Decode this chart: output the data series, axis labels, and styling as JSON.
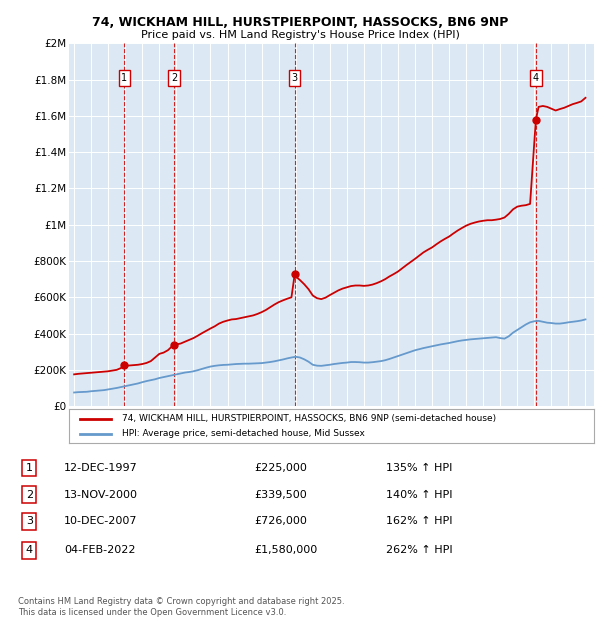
{
  "title_line1": "74, WICKHAM HILL, HURSTPIERPOINT, HASSOCKS, BN6 9NP",
  "title_line2": "Price paid vs. HM Land Registry's House Price Index (HPI)",
  "bg_color": "#dce9f5",
  "red_color": "#cc0000",
  "blue_color": "#6699cc",
  "grid_color": "#ffffff",
  "ylim": [
    0,
    2000000
  ],
  "yticks": [
    0,
    200000,
    400000,
    600000,
    800000,
    1000000,
    1200000,
    1400000,
    1600000,
    1800000,
    2000000
  ],
  "ytick_labels": [
    "£0",
    "£200K",
    "£400K",
    "£600K",
    "£800K",
    "£1M",
    "£1.2M",
    "£1.4M",
    "£1.6M",
    "£1.8M",
    "£2M"
  ],
  "xlim_start": 1994.7,
  "xlim_end": 2025.5,
  "xticks": [
    1995,
    1996,
    1997,
    1998,
    1999,
    2000,
    2001,
    2002,
    2003,
    2004,
    2005,
    2006,
    2007,
    2008,
    2009,
    2010,
    2011,
    2012,
    2013,
    2014,
    2015,
    2016,
    2017,
    2018,
    2019,
    2020,
    2021,
    2022,
    2023,
    2024,
    2025
  ],
  "sale_dates": [
    1997.95,
    2000.87,
    2007.94,
    2022.09
  ],
  "sale_prices": [
    225000,
    339500,
    726000,
    1580000
  ],
  "sale_labels": [
    "1",
    "2",
    "3",
    "4"
  ],
  "legend_red": "74, WICKHAM HILL, HURSTPIERPOINT, HASSOCKS, BN6 9NP (semi-detached house)",
  "legend_blue": "HPI: Average price, semi-detached house, Mid Sussex",
  "table_data": [
    [
      "1",
      "12-DEC-1997",
      "£225,000",
      "135% ↑ HPI"
    ],
    [
      "2",
      "13-NOV-2000",
      "£339,500",
      "140% ↑ HPI"
    ],
    [
      "3",
      "10-DEC-2007",
      "£726,000",
      "162% ↑ HPI"
    ],
    [
      "4",
      "04-FEB-2022",
      "£1,580,000",
      "262% ↑ HPI"
    ]
  ],
  "footer_text": "Contains HM Land Registry data © Crown copyright and database right 2025.\nThis data is licensed under the Open Government Licence v3.0.",
  "hpi_years": [
    1995.0,
    1995.25,
    1995.5,
    1995.75,
    1996.0,
    1996.25,
    1996.5,
    1996.75,
    1997.0,
    1997.25,
    1997.5,
    1997.75,
    1998.0,
    1998.25,
    1998.5,
    1998.75,
    1999.0,
    1999.25,
    1999.5,
    1999.75,
    2000.0,
    2000.25,
    2000.5,
    2000.75,
    2001.0,
    2001.25,
    2001.5,
    2001.75,
    2002.0,
    2002.25,
    2002.5,
    2002.75,
    2003.0,
    2003.25,
    2003.5,
    2003.75,
    2004.0,
    2004.25,
    2004.5,
    2004.75,
    2005.0,
    2005.25,
    2005.5,
    2005.75,
    2006.0,
    2006.25,
    2006.5,
    2006.75,
    2007.0,
    2007.25,
    2007.5,
    2007.75,
    2008.0,
    2008.25,
    2008.5,
    2008.75,
    2009.0,
    2009.25,
    2009.5,
    2009.75,
    2010.0,
    2010.25,
    2010.5,
    2010.75,
    2011.0,
    2011.25,
    2011.5,
    2011.75,
    2012.0,
    2012.25,
    2012.5,
    2012.75,
    2013.0,
    2013.25,
    2013.5,
    2013.75,
    2014.0,
    2014.25,
    2014.5,
    2014.75,
    2015.0,
    2015.25,
    2015.5,
    2015.75,
    2016.0,
    2016.25,
    2016.5,
    2016.75,
    2017.0,
    2017.25,
    2017.5,
    2017.75,
    2018.0,
    2018.25,
    2018.5,
    2018.75,
    2019.0,
    2019.25,
    2019.5,
    2019.75,
    2020.0,
    2020.25,
    2020.5,
    2020.75,
    2021.0,
    2021.25,
    2021.5,
    2021.75,
    2022.0,
    2022.25,
    2022.5,
    2022.75,
    2023.0,
    2023.25,
    2023.5,
    2023.75,
    2024.0,
    2024.25,
    2024.5,
    2024.75,
    2025.0
  ],
  "hpi_values": [
    75000,
    77000,
    78000,
    79000,
    82000,
    84000,
    86000,
    88000,
    92000,
    96000,
    100000,
    105000,
    110000,
    115000,
    120000,
    125000,
    132000,
    138000,
    143000,
    148000,
    155000,
    160000,
    165000,
    170000,
    175000,
    180000,
    185000,
    188000,
    192000,
    198000,
    205000,
    212000,
    218000,
    222000,
    225000,
    227000,
    228000,
    230000,
    232000,
    233000,
    234000,
    234000,
    235000,
    236000,
    237000,
    240000,
    243000,
    247000,
    252000,
    257000,
    263000,
    268000,
    272000,
    268000,
    258000,
    245000,
    228000,
    223000,
    222000,
    225000,
    228000,
    232000,
    235000,
    238000,
    240000,
    243000,
    243000,
    242000,
    240000,
    240000,
    242000,
    245000,
    248000,
    253000,
    260000,
    268000,
    276000,
    284000,
    292000,
    300000,
    308000,
    314000,
    320000,
    325000,
    330000,
    335000,
    340000,
    344000,
    348000,
    353000,
    358000,
    362000,
    365000,
    368000,
    370000,
    372000,
    374000,
    376000,
    378000,
    380000,
    375000,
    372000,
    385000,
    405000,
    420000,
    435000,
    450000,
    462000,
    468000,
    470000,
    465000,
    460000,
    458000,
    455000,
    455000,
    458000,
    462000,
    465000,
    468000,
    472000,
    478000
  ],
  "red_years": [
    1995.0,
    1995.25,
    1995.5,
    1995.75,
    1996.0,
    1996.25,
    1996.5,
    1996.75,
    1997.0,
    1997.25,
    1997.5,
    1997.75,
    1997.95,
    1998.0,
    1998.25,
    1998.5,
    1998.75,
    1999.0,
    1999.25,
    1999.5,
    1999.75,
    2000.0,
    2000.25,
    2000.5,
    2000.75,
    2000.87,
    2001.0,
    2001.25,
    2001.5,
    2001.75,
    2002.0,
    2002.25,
    2002.5,
    2002.75,
    2003.0,
    2003.25,
    2003.5,
    2003.75,
    2004.0,
    2004.25,
    2004.5,
    2004.75,
    2005.0,
    2005.25,
    2005.5,
    2005.75,
    2006.0,
    2006.25,
    2006.5,
    2006.75,
    2007.0,
    2007.25,
    2007.5,
    2007.75,
    2007.94,
    2008.0,
    2008.25,
    2008.5,
    2008.75,
    2009.0,
    2009.25,
    2009.5,
    2009.75,
    2010.0,
    2010.25,
    2010.5,
    2010.75,
    2011.0,
    2011.25,
    2011.5,
    2011.75,
    2012.0,
    2012.25,
    2012.5,
    2012.75,
    2013.0,
    2013.25,
    2013.5,
    2013.75,
    2014.0,
    2014.25,
    2014.5,
    2014.75,
    2015.0,
    2015.25,
    2015.5,
    2015.75,
    2016.0,
    2016.25,
    2016.5,
    2016.75,
    2017.0,
    2017.25,
    2017.5,
    2017.75,
    2018.0,
    2018.25,
    2018.5,
    2018.75,
    2019.0,
    2019.25,
    2019.5,
    2019.75,
    2020.0,
    2020.25,
    2020.5,
    2020.75,
    2021.0,
    2021.25,
    2021.5,
    2021.75,
    2022.09,
    2022.25,
    2022.5,
    2022.75,
    2023.0,
    2023.25,
    2023.5,
    2023.75,
    2024.0,
    2024.25,
    2024.5,
    2024.75,
    2025.0
  ],
  "red_values": [
    175000,
    178000,
    180000,
    182000,
    184000,
    186000,
    188000,
    190000,
    192000,
    196000,
    200000,
    210000,
    225000,
    222000,
    224000,
    226000,
    228000,
    232000,
    238000,
    248000,
    268000,
    288000,
    295000,
    308000,
    330000,
    339500,
    340000,
    345000,
    355000,
    365000,
    375000,
    388000,
    402000,
    415000,
    428000,
    440000,
    455000,
    465000,
    472000,
    478000,
    480000,
    485000,
    490000,
    495000,
    500000,
    508000,
    518000,
    530000,
    545000,
    560000,
    573000,
    583000,
    592000,
    600000,
    726000,
    715000,
    695000,
    672000,
    645000,
    610000,
    595000,
    590000,
    598000,
    612000,
    625000,
    638000,
    648000,
    655000,
    662000,
    665000,
    665000,
    663000,
    665000,
    670000,
    678000,
    688000,
    700000,
    715000,
    728000,
    742000,
    760000,
    778000,
    795000,
    812000,
    830000,
    848000,
    862000,
    875000,
    892000,
    908000,
    922000,
    935000,
    952000,
    968000,
    982000,
    995000,
    1005000,
    1012000,
    1018000,
    1022000,
    1025000,
    1025000,
    1028000,
    1032000,
    1040000,
    1060000,
    1085000,
    1100000,
    1105000,
    1108000,
    1115000,
    1580000,
    1650000,
    1655000,
    1650000,
    1640000,
    1630000,
    1638000,
    1645000,
    1655000,
    1665000,
    1672000,
    1680000,
    1700000
  ]
}
